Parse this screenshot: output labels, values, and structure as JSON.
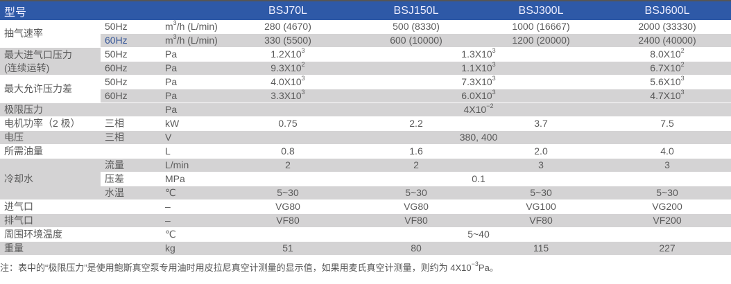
{
  "header": {
    "model_label": "型号",
    "models": [
      "BSJ70L",
      "BSJ150L",
      "BSJ300L",
      "BSJ600L"
    ]
  },
  "rows": {
    "pump_speed": {
      "label": "抽气速率",
      "r50": {
        "hz": "50Hz",
        "unit_pre": "m",
        "unit_sup": "3",
        "unit_post": "/h (L/min)",
        "v": [
          "280 (4670)",
          "500 (8330)",
          "1000 (16667)",
          "2000 (33330)"
        ]
      },
      "r60": {
        "hz": "60Hz",
        "unit_pre": "m",
        "unit_sup": "3",
        "unit_post": "/h (L/min)",
        "v": [
          "330 (5500)",
          "600 (10000)",
          "1200 (20000)",
          "2400 (40000)"
        ]
      }
    },
    "max_inlet": {
      "label": "最大进气口压力",
      "label2": "(连续运转)",
      "r50": {
        "hz": "50Hz",
        "unit": "Pa",
        "v": [
          {
            "b": "1.2X10",
            "e": "3"
          },
          {
            "b": "1.3X10",
            "e": "3"
          },
          {
            "b": "8.0X10",
            "e": "2"
          }
        ]
      },
      "r60": {
        "hz": "60Hz",
        "unit": "Pa",
        "v": [
          {
            "b": "9.3X10",
            "e": "2"
          },
          {
            "b": "1.1X10",
            "e": "3"
          },
          {
            "b": "6.7X10",
            "e": "2"
          }
        ]
      }
    },
    "max_diff": {
      "label": "最大允许压力差",
      "r50": {
        "hz": "50Hz",
        "unit": "Pa",
        "v": [
          {
            "b": "4.0X10",
            "e": "3"
          },
          {
            "b": "7.3X10",
            "e": "3"
          },
          {
            "b": "5.6X10",
            "e": "3"
          }
        ]
      },
      "r60": {
        "hz": "60Hz",
        "unit": "Pa",
        "v": [
          {
            "b": "3.3X10",
            "e": "3"
          },
          {
            "b": "6.0X10",
            "e": "3"
          },
          {
            "b": "4.7X10",
            "e": "3"
          }
        ]
      }
    },
    "ultimate": {
      "label": "极限压力",
      "unit": "Pa",
      "v": {
        "b": "4X10",
        "e": "−2"
      }
    },
    "motor": {
      "label": "电机功率（2 极）",
      "sub": "三相",
      "unit": "kW",
      "v": [
        "0.75",
        "2.2",
        "3.7",
        "7.5"
      ]
    },
    "voltage": {
      "label": "电压",
      "sub": "三相",
      "unit": "V",
      "v": "380, 400"
    },
    "oil": {
      "label": "所需油量",
      "unit": "L",
      "v": [
        "0.8",
        "1.6",
        "2.0",
        "4.0"
      ]
    },
    "cooling": {
      "label": "冷却水",
      "flow": {
        "sub": "流量",
        "unit": "L/min",
        "v": [
          "2",
          "2",
          "3",
          "3"
        ]
      },
      "pdiff": {
        "sub": "压差",
        "unit": "MPa",
        "v": "0.1"
      },
      "temp": {
        "sub": "水温",
        "unit": "℃",
        "v": [
          "5~30",
          "5~30",
          "5~30",
          "5~30"
        ]
      }
    },
    "inlet": {
      "label": "进气口",
      "unit": "–",
      "v": [
        "VG80",
        "VG80",
        "VG100",
        "VG200"
      ]
    },
    "outlet": {
      "label": "排气口",
      "unit": "–",
      "v": [
        "VF80",
        "VF80",
        "VF80",
        "VF200"
      ]
    },
    "ambient": {
      "label": "周围环境温度",
      "unit": "℃",
      "v": "5~40"
    },
    "weight": {
      "label": "重量",
      "unit": "kg",
      "v": [
        "51",
        "80",
        "115",
        "227"
      ]
    }
  },
  "note": {
    "pre": "注：表中的“极限压力”是使用鲍斯真空泵专用油时用皮拉尼真空计测量的显示值，如果用麦氏真空计测量，则约为 4X10",
    "sup": "−3",
    "post": "Pa。"
  }
}
